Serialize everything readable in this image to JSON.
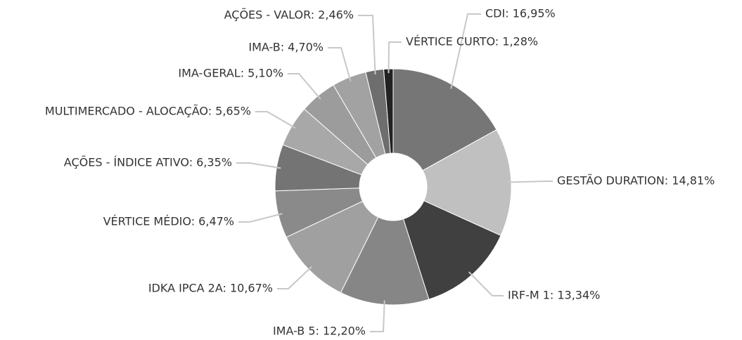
{
  "chart_data": {
    "type": "pie",
    "value_labels": [
      "CDI: 16,95%",
      "GESTÃO DURATION: 14,81%",
      "IRF-M 1: 13,34%",
      "IMA-B 5: 12,20%",
      "IDKA IPCA 2A: 10,67%",
      "VÉRTICE MÉDIO: 6,47%",
      "AÇÕES - ÍNDICE ATIVO: 6,35%",
      "MULTIMERCADO - ALOCAÇÃO: 5,65%",
      "IMA-GERAL: 5,10%",
      "IMA-B: 4,70%",
      "AÇÕES - VALOR: 2,46%",
      "VÉRTICE CURTO: 1,28%"
    ],
    "values": [
      16.95,
      14.81,
      13.34,
      12.2,
      10.67,
      6.47,
      6.35,
      5.65,
      5.1,
      4.7,
      2.46,
      1.28
    ],
    "colors": [
      "#767676",
      "#c0c0c0",
      "#404040",
      "#868686",
      "#a0a0a0",
      "#8a8a8a",
      "#747474",
      "#a8a8a8",
      "#9c9c9c",
      "#a2a2a2",
      "#6e6e6e",
      "#222222"
    ]
  }
}
